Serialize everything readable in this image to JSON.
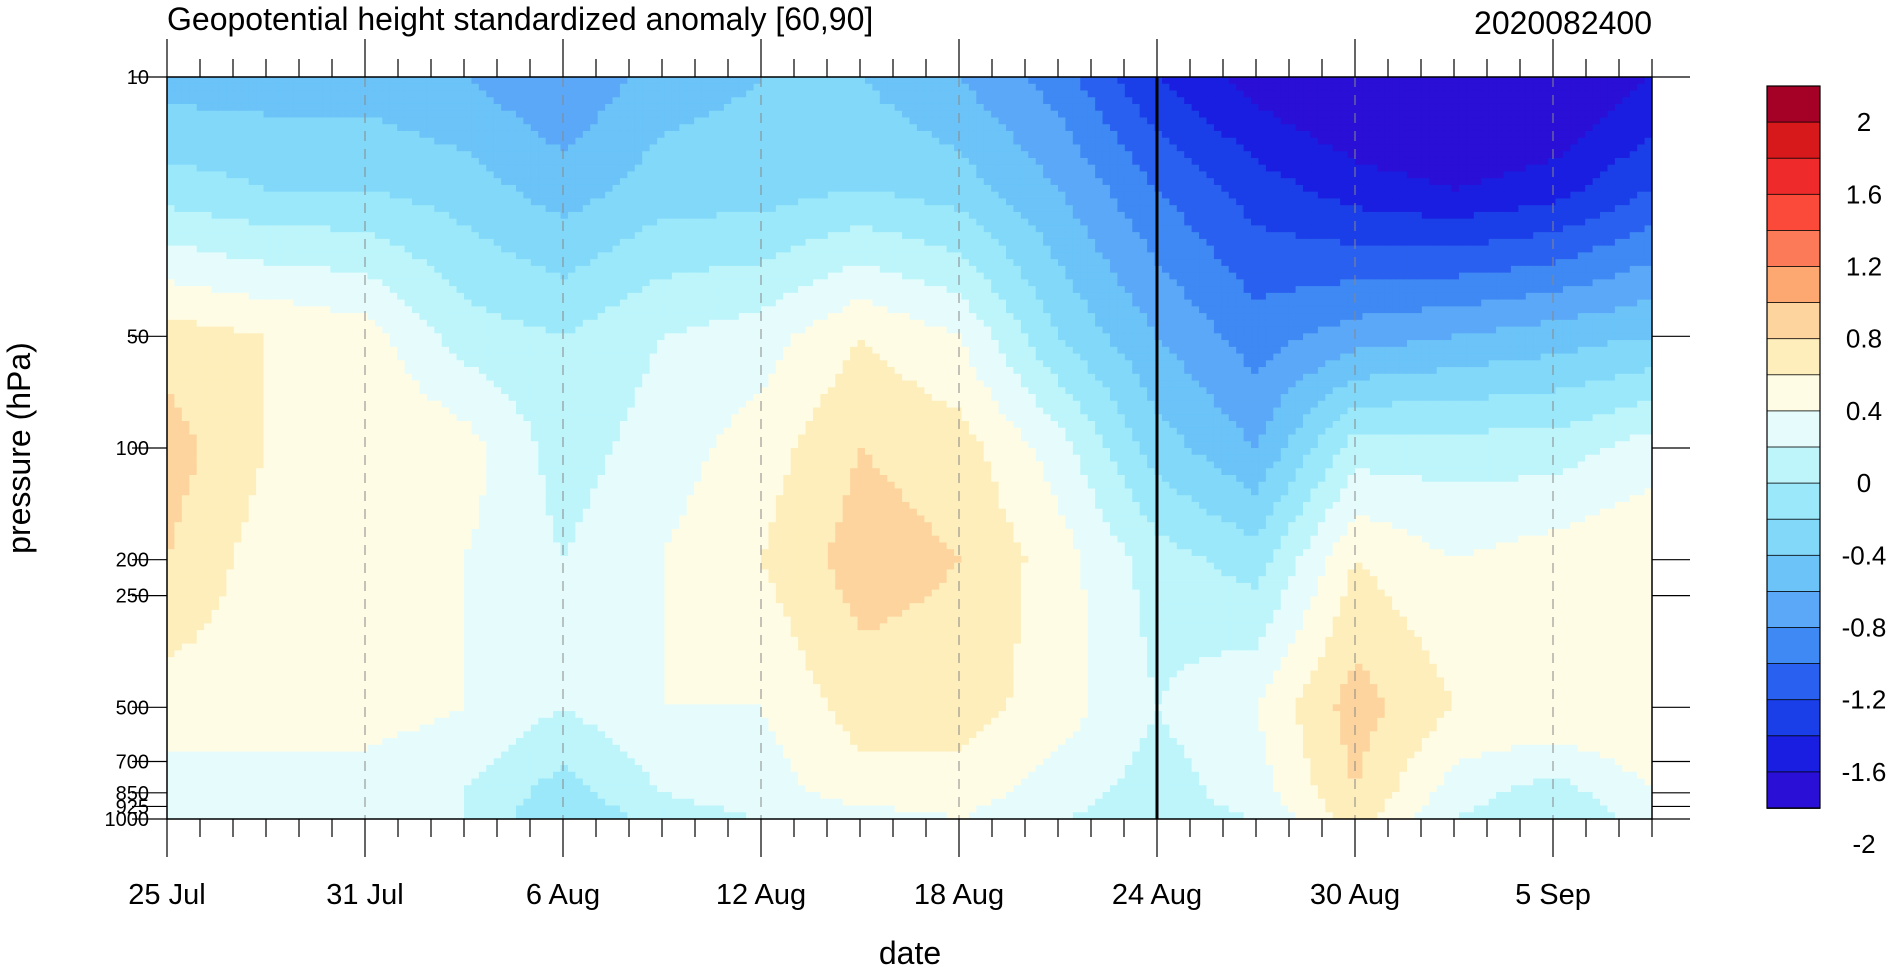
{
  "chart_data": {
    "type": "heatmap",
    "title": "Geopotential height standardized anomaly [60,90]",
    "subtitle": "2020082400",
    "xlabel": "date",
    "ylabel": "pressure (hPa)",
    "x_ticks": [
      "25 Jul",
      "31 Jul",
      "6 Aug",
      "12 Aug",
      "18 Aug",
      "24 Aug",
      "30 Aug",
      "5 Sep"
    ],
    "x_range": [
      "25 Jul",
      "8 Sep"
    ],
    "y_ticks": [
      "10",
      "50",
      "100",
      "200",
      "250",
      "500",
      "700",
      "850",
      "925",
      "1000"
    ],
    "y_scale": "log",
    "y_range": [
      1000,
      10
    ],
    "marker_date": "24 Aug",
    "colorbar": {
      "labels": [
        "2",
        "1.6",
        "1.2",
        "0.8",
        "0.4",
        "0",
        "-0.4",
        "-0.8",
        "-1.2",
        "-1.6",
        "-2"
      ],
      "colors": [
        "#a50026",
        "#d7191c",
        "#ee2a2a",
        "#fb4a3a",
        "#fc7a58",
        "#fda870",
        "#fdd49e",
        "#fdeebb",
        "#fffce6",
        "#e6fcfc",
        "#bdf5fb",
        "#9ae8fa",
        "#82d8f9",
        "#6bc3f8",
        "#5aa8f7",
        "#3e89f4",
        "#2a60ef",
        "#1a3ee8",
        "#1a1ee0",
        "#2a0fd6"
      ]
    },
    "dates": [
      "25 Jul",
      "28 Jul",
      "31 Jul",
      "3 Aug",
      "6 Aug",
      "9 Aug",
      "12 Aug",
      "15 Aug",
      "18 Aug",
      "21 Aug",
      "24 Aug",
      "27 Aug",
      "30 Aug",
      "2 Sep",
      "5 Sep",
      "8 Sep"
    ],
    "levels": [
      10,
      20,
      50,
      100,
      200,
      500,
      850,
      1000
    ],
    "values": [
      [
        -0.7,
        -0.7,
        -0.7,
        -0.8,
        -1.0,
        -0.7,
        -0.6,
        -0.6,
        -0.8,
        -1.1,
        -1.6,
        -1.9,
        -2.1,
        -2.2,
        -2.1,
        -1.8
      ],
      [
        -0.3,
        -0.4,
        -0.4,
        -0.5,
        -0.7,
        -0.5,
        -0.5,
        -0.4,
        -0.5,
        -0.8,
        -1.2,
        -1.5,
        -1.7,
        -1.8,
        -1.7,
        -1.4
      ],
      [
        0.5,
        0.4,
        0.3,
        -0.1,
        -0.2,
        0.0,
        0.1,
        0.4,
        0.2,
        -0.4,
        -0.8,
        -1.1,
        -0.9,
        -0.8,
        -0.7,
        -0.6
      ],
      [
        0.7,
        0.4,
        0.4,
        0.3,
        -0.1,
        0.1,
        0.3,
        0.6,
        0.5,
        0.1,
        -0.5,
        -0.8,
        -0.1,
        -0.1,
        -0.1,
        0.1
      ],
      [
        0.6,
        0.3,
        0.3,
        0.2,
        0.0,
        0.2,
        0.4,
        0.7,
        0.6,
        0.3,
        -0.1,
        -0.3,
        0.4,
        0.2,
        0.3,
        0.4
      ],
      [
        0.3,
        0.3,
        0.3,
        0.2,
        0.0,
        0.2,
        0.2,
        0.5,
        0.5,
        0.3,
        0.0,
        0.2,
        0.7,
        0.4,
        0.4,
        0.4
      ],
      [
        0.1,
        0.1,
        0.1,
        0.0,
        -0.3,
        0.0,
        0.1,
        0.3,
        0.3,
        0.1,
        -0.1,
        0.1,
        0.6,
        0.1,
        -0.1,
        0.2
      ],
      [
        0.0,
        0.0,
        0.0,
        0.0,
        -0.4,
        -0.1,
        0.0,
        0.1,
        0.2,
        0.0,
        -0.1,
        0.0,
        0.5,
        0.0,
        -0.2,
        0.1
      ]
    ]
  }
}
